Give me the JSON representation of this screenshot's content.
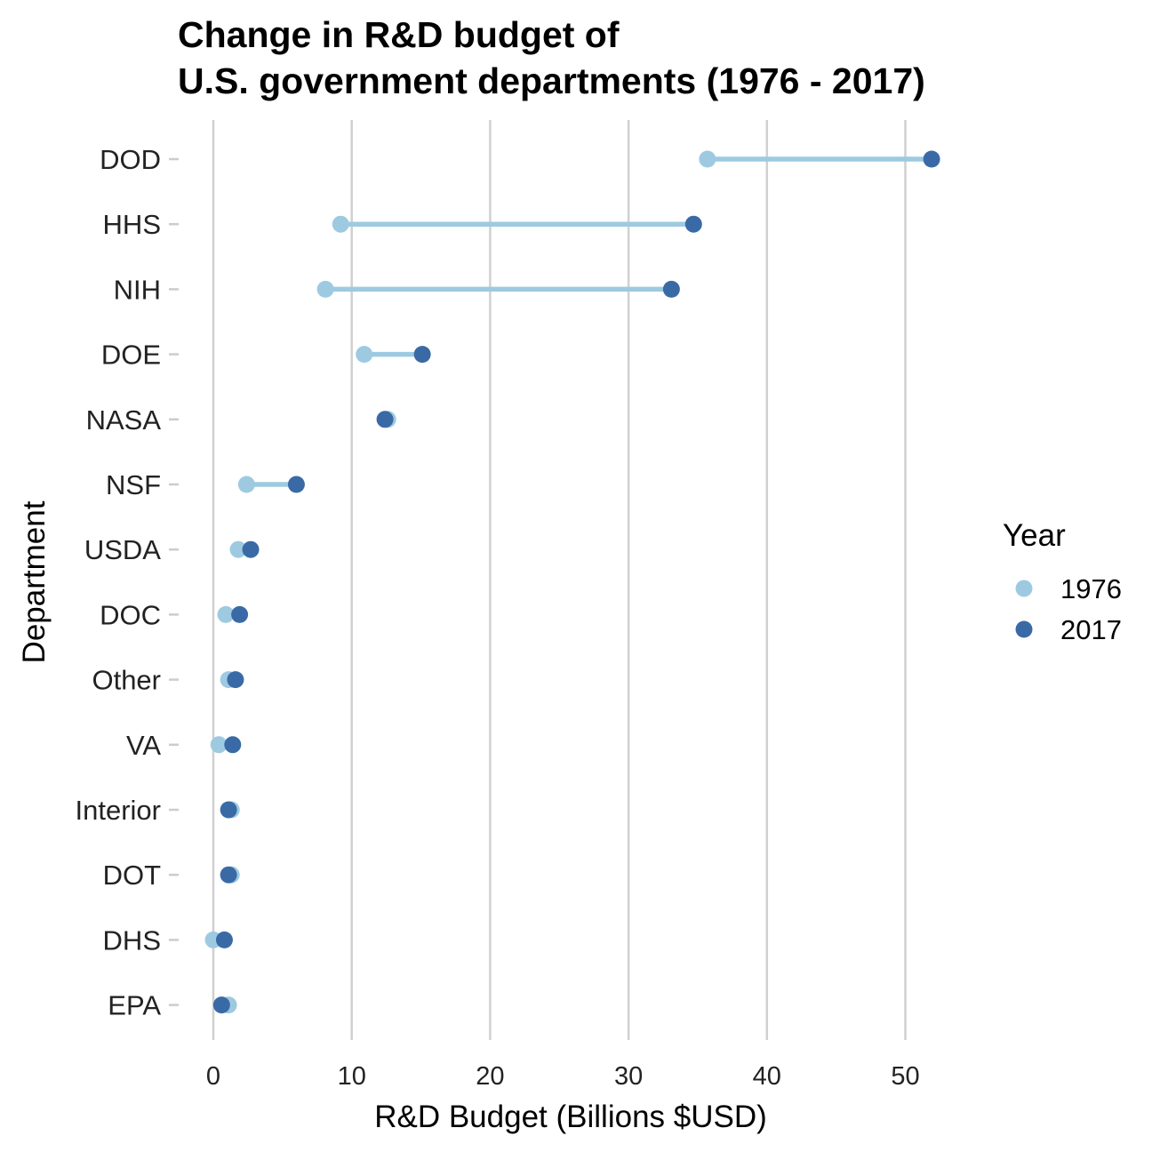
{
  "chart_data": {
    "type": "dumbbell",
    "title_lines": [
      "Change in R&D budget of",
      "U.S. government departments (1976 - 2017)"
    ],
    "xlabel": "R&D Budget (Billions $USD)",
    "ylabel": "Department",
    "xlim": [
      0,
      55
    ],
    "x_ticks": [
      0,
      10,
      20,
      30,
      40,
      50
    ],
    "grid": "vertical major gridlines",
    "legend": {
      "title": "Year",
      "placement": "right",
      "entries": [
        {
          "label": "1976",
          "color": "#9ecae1"
        },
        {
          "label": "2017",
          "color": "#3a6aa6"
        }
      ]
    },
    "segment_color": "#9ecae1",
    "categories": [
      "DOD",
      "HHS",
      "NIH",
      "DOE",
      "NASA",
      "NSF",
      "USDA",
      "DOC",
      "Other",
      "VA",
      "Interior",
      "DOT",
      "DHS",
      "EPA"
    ],
    "series": [
      {
        "name": "1976",
        "values": [
          35.7,
          9.2,
          8.1,
          10.9,
          12.6,
          2.4,
          1.8,
          0.9,
          1.1,
          0.4,
          1.3,
          1.3,
          0.0,
          1.1
        ]
      },
      {
        "name": "2017",
        "values": [
          51.9,
          34.7,
          33.1,
          15.1,
          12.4,
          6.0,
          2.7,
          1.9,
          1.6,
          1.4,
          1.1,
          1.1,
          0.8,
          0.6
        ]
      }
    ]
  }
}
